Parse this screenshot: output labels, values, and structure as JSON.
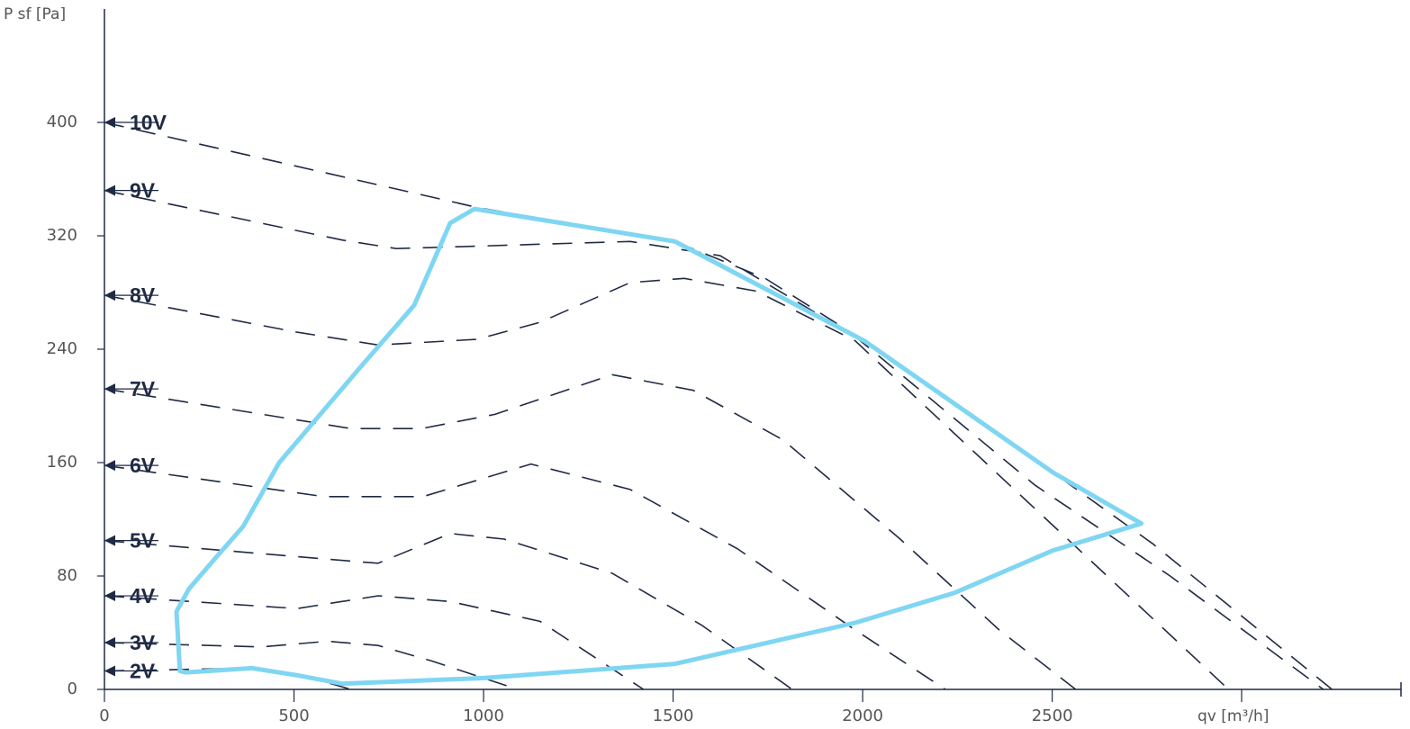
{
  "chart_data": {
    "type": "line",
    "y_label": "P sf [Pa]",
    "x_label": "qv [m³/h]",
    "xlim": [
      0,
      3420
    ],
    "ylim": [
      0,
      480
    ],
    "xticks": [
      0,
      500,
      1000,
      1500,
      2000,
      2500
    ],
    "yticks": [
      0,
      80,
      160,
      240,
      320,
      400
    ],
    "series": [
      {
        "name": "10V",
        "color": "#1f2a44",
        "dashed": true,
        "x": [
          0,
          983,
          1505,
          1743,
          2004,
          2502,
          2764,
          3238
        ],
        "values": [
          400,
          340,
          316,
          290,
          246,
          153,
          103,
          0
        ]
      },
      {
        "name": "9V",
        "color": "#1f2a44",
        "dashed": true,
        "x": [
          0,
          627,
          770,
          1387,
          1624,
          1980,
          2455,
          2811,
          3215
        ],
        "values": [
          352,
          317,
          311,
          316,
          306,
          249,
          144,
          80,
          0
        ]
      },
      {
        "name": "8V",
        "color": "#1f2a44",
        "dashed": true,
        "x": [
          0,
          508,
          722,
          983,
          1149,
          1387,
          1529,
          1719,
          1980,
          2336,
          2645,
          2965
        ],
        "values": [
          278,
          252,
          243,
          247,
          259,
          287,
          290,
          281,
          246,
          157,
          80,
          0
        ]
      },
      {
        "name": "7V",
        "color": "#1f2a44",
        "dashed": true,
        "x": [
          0,
          650,
          836,
          1030,
          1339,
          1553,
          1790,
          2099,
          2360,
          2562
        ],
        "values": [
          212,
          184,
          184,
          194,
          222,
          211,
          176,
          106,
          42,
          0
        ]
      },
      {
        "name": "6V",
        "color": "#1f2a44",
        "dashed": true,
        "x": [
          0,
          579,
          840,
          1125,
          1387,
          1671,
          1980,
          2218
        ],
        "values": [
          158,
          136,
          136,
          159,
          141,
          99,
          42,
          0
        ]
      },
      {
        "name": "5V",
        "color": "#1f2a44",
        "dashed": true,
        "x": [
          0,
          674,
          722,
          912,
          1054,
          1339,
          1577,
          1814
        ],
        "values": [
          105,
          90,
          89,
          110,
          106,
          82,
          45,
          0
        ]
      },
      {
        "name": "4V",
        "color": "#1f2a44",
        "dashed": true,
        "x": [
          0,
          508,
          722,
          912,
          1149,
          1422
        ],
        "values": [
          66,
          57,
          66,
          62,
          48,
          0
        ]
      },
      {
        "name": "3V",
        "color": "#1f2a44",
        "dashed": true,
        "x": [
          0,
          413,
          589,
          722,
          864,
          1090
        ],
        "values": [
          33,
          30,
          34,
          31,
          20,
          0
        ]
      },
      {
        "name": "2V",
        "color": "#1f2a44",
        "dashed": true,
        "x": [
          0,
          389,
          508,
          650
        ],
        "values": [
          13,
          15,
          11,
          0
        ]
      },
      {
        "color": "#7fd6f2",
        "dashed": false,
        "x": [
          190,
          199,
          214,
          389,
          508,
          627,
          1000,
          1505,
          1980,
          2241,
          2502,
          2735,
          2502,
          2004,
          1505,
          976,
          912,
          817,
          674,
          461,
          366,
          294,
          223,
          190
        ],
        "values": [
          55,
          13,
          12,
          15,
          10,
          4,
          8,
          18,
          47,
          68,
          98,
          117,
          153,
          246,
          316,
          339,
          329,
          271,
          227,
          160,
          115,
          93,
          71,
          55
        ]
      }
    ]
  }
}
